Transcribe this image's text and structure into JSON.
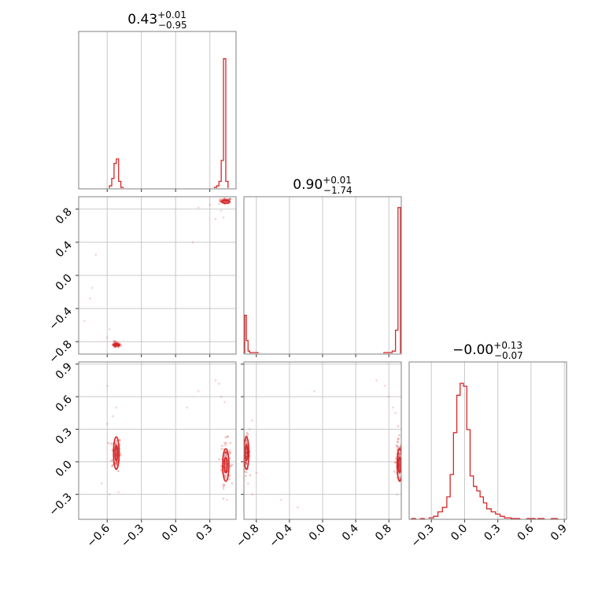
{
  "chart_data": [
    {
      "type": "histogram",
      "panel": "diag-0",
      "title": {
        "base": "0.43",
        "sup": "+0.01",
        "sub": "−0.95"
      },
      "xlim": [
        -0.85,
        0.53
      ],
      "bins": [
        {
          "x0": -0.58,
          "x1": -0.56,
          "v": 0.02
        },
        {
          "x0": -0.56,
          "x1": -0.54,
          "v": 0.07
        },
        {
          "x0": -0.54,
          "x1": -0.52,
          "v": 0.17
        },
        {
          "x0": -0.52,
          "x1": -0.5,
          "v": 0.2
        },
        {
          "x0": -0.5,
          "x1": -0.48,
          "v": 0.05
        },
        {
          "x0": -0.48,
          "x1": -0.46,
          "v": 0.01
        },
        {
          "x0": 0.34,
          "x1": 0.36,
          "v": 0.01
        },
        {
          "x0": 0.36,
          "x1": 0.38,
          "v": 0.02
        },
        {
          "x0": 0.38,
          "x1": 0.4,
          "v": 0.05
        },
        {
          "x0": 0.4,
          "x1": 0.42,
          "v": 0.19
        },
        {
          "x0": 0.42,
          "x1": 0.44,
          "v": 0.87
        },
        {
          "x0": 0.44,
          "x1": 0.46,
          "v": 0.05
        }
      ],
      "xticks": [
        -0.6,
        -0.3,
        0.0,
        0.3
      ]
    },
    {
      "type": "histogram",
      "panel": "diag-1",
      "title": {
        "base": "0.90",
        "sup": "+0.01",
        "sub": "−1.74"
      },
      "xlim": [
        -0.95,
        0.95
      ],
      "bins": [
        {
          "x0": -0.94,
          "x1": -0.92,
          "v": 0.26
        },
        {
          "x0": -0.92,
          "x1": -0.9,
          "v": 0.09
        },
        {
          "x0": -0.9,
          "x1": -0.88,
          "v": 0.02
        },
        {
          "x0": -0.88,
          "x1": -0.84,
          "v": 0.01
        },
        {
          "x0": -0.84,
          "x1": -0.78,
          "v": 0.01
        },
        {
          "x0": 0.74,
          "x1": 0.84,
          "v": 0.01
        },
        {
          "x0": 0.84,
          "x1": 0.88,
          "v": 0.02
        },
        {
          "x0": 0.88,
          "x1": 0.91,
          "v": 0.16
        },
        {
          "x0": 0.91,
          "x1": 0.94,
          "v": 0.98
        }
      ],
      "xticks": [
        -0.8,
        -0.4,
        0.0,
        0.4,
        0.8
      ]
    },
    {
      "type": "histogram",
      "panel": "diag-2",
      "title": {
        "base": "−0.00",
        "sup": "+0.13",
        "sub": "−0.07"
      },
      "xlim": [
        -0.5,
        0.92
      ],
      "bins": [
        {
          "x0": -0.48,
          "x1": -0.44,
          "v": 0.005
        },
        {
          "x0": -0.4,
          "x1": -0.36,
          "v": 0.005
        },
        {
          "x0": -0.32,
          "x1": -0.28,
          "v": 0.01
        },
        {
          "x0": -0.28,
          "x1": -0.24,
          "v": 0.02
        },
        {
          "x0": -0.24,
          "x1": -0.2,
          "v": 0.05
        },
        {
          "x0": -0.2,
          "x1": -0.16,
          "v": 0.08
        },
        {
          "x0": -0.16,
          "x1": -0.13,
          "v": 0.15
        },
        {
          "x0": -0.13,
          "x1": -0.1,
          "v": 0.3
        },
        {
          "x0": -0.1,
          "x1": -0.07,
          "v": 0.58
        },
        {
          "x0": -0.07,
          "x1": -0.04,
          "v": 0.83
        },
        {
          "x0": -0.04,
          "x1": -0.01,
          "v": 0.91
        },
        {
          "x0": -0.01,
          "x1": 0.02,
          "v": 0.89
        },
        {
          "x0": 0.02,
          "x1": 0.05,
          "v": 0.6
        },
        {
          "x0": 0.05,
          "x1": 0.08,
          "v": 0.29
        },
        {
          "x0": 0.08,
          "x1": 0.11,
          "v": 0.22
        },
        {
          "x0": 0.11,
          "x1": 0.14,
          "v": 0.19
        },
        {
          "x0": 0.14,
          "x1": 0.17,
          "v": 0.15
        },
        {
          "x0": 0.17,
          "x1": 0.2,
          "v": 0.11
        },
        {
          "x0": 0.2,
          "x1": 0.24,
          "v": 0.07
        },
        {
          "x0": 0.24,
          "x1": 0.28,
          "v": 0.05
        },
        {
          "x0": 0.28,
          "x1": 0.32,
          "v": 0.035
        },
        {
          "x0": 0.32,
          "x1": 0.36,
          "v": 0.02
        },
        {
          "x0": 0.36,
          "x1": 0.42,
          "v": 0.01
        },
        {
          "x0": 0.42,
          "x1": 0.5,
          "v": 0.005
        },
        {
          "x0": 0.56,
          "x1": 0.64,
          "v": 0.005
        },
        {
          "x0": 0.66,
          "x1": 0.72,
          "v": 0.005
        },
        {
          "x0": 0.78,
          "x1": 0.84,
          "v": 0.005
        }
      ],
      "xticks": [
        -0.3,
        0.0,
        0.3,
        0.6,
        0.9
      ]
    },
    {
      "type": "scatter",
      "panel": "p10",
      "xlim": [
        -0.85,
        0.53
      ],
      "ylim": [
        -0.95,
        0.95
      ],
      "yticks": [
        -0.8,
        -0.4,
        0.0,
        0.4,
        0.8
      ],
      "clusters": [
        {
          "cx": 0.44,
          "cy": 0.9,
          "sx": 0.025,
          "sy": 0.015,
          "n": 60
        },
        {
          "cx": -0.52,
          "cy": -0.84,
          "sx": 0.02,
          "sy": 0.02,
          "n": 40
        }
      ],
      "outliers": [
        [
          0.4,
          0.78
        ],
        [
          0.35,
          0.68
        ],
        [
          0.42,
          0.7
        ],
        [
          0.2,
          0.82
        ],
        [
          0.15,
          0.4
        ],
        [
          -0.7,
          0.25
        ],
        [
          -0.73,
          -0.15
        ],
        [
          -0.75,
          -0.28
        ],
        [
          -0.58,
          -0.65
        ],
        [
          -0.6,
          -0.75
        ],
        [
          -0.8,
          -0.55
        ],
        [
          0.3,
          0.85
        ],
        [
          0.38,
          0.86
        ]
      ],
      "contours": [
        {
          "cx": 0.44,
          "cy": 0.89,
          "rx": 0.035,
          "ry": 0.02
        },
        {
          "cx": -0.52,
          "cy": -0.84,
          "rx": 0.03,
          "ry": 0.015
        },
        {
          "cx": -0.52,
          "cy": -0.84,
          "rx": 0.015,
          "ry": 0.008
        }
      ]
    },
    {
      "type": "scatter",
      "panel": "p20",
      "xlim": [
        -0.85,
        0.53
      ],
      "ylim": [
        -0.53,
        0.92
      ],
      "yticks": [
        -0.3,
        0.0,
        0.3,
        0.6,
        0.9
      ],
      "clusters": [
        {
          "cx": -0.52,
          "cy": 0.08,
          "sx": 0.02,
          "sy": 0.08,
          "n": 80
        },
        {
          "cx": 0.44,
          "cy": 0.0,
          "sx": 0.02,
          "sy": 0.1,
          "n": 90
        }
      ],
      "outliers": [
        [
          -0.6,
          0.35
        ],
        [
          -0.55,
          0.42
        ],
        [
          -0.52,
          0.5
        ],
        [
          -0.6,
          0.7
        ],
        [
          -0.65,
          -0.2
        ],
        [
          -0.58,
          -0.3
        ],
        [
          0.4,
          0.6
        ],
        [
          0.38,
          0.72
        ],
        [
          0.35,
          0.75
        ],
        [
          0.43,
          0.55
        ],
        [
          0.2,
          0.65
        ],
        [
          0.1,
          0.5
        ],
        [
          0.45,
          -0.35
        ],
        [
          0.42,
          -0.25
        ],
        [
          -0.5,
          -0.28
        ]
      ],
      "contours": [
        {
          "cx": -0.52,
          "cy": 0.08,
          "rx": 0.025,
          "ry": 0.15
        },
        {
          "cx": -0.52,
          "cy": 0.08,
          "rx": 0.012,
          "ry": 0.07
        },
        {
          "cx": 0.44,
          "cy": -0.03,
          "rx": 0.028,
          "ry": 0.15
        },
        {
          "cx": 0.44,
          "cy": -0.03,
          "rx": 0.014,
          "ry": 0.07
        }
      ]
    },
    {
      "type": "scatter",
      "panel": "p21",
      "xlim": [
        -0.95,
        0.95
      ],
      "ylim": [
        -0.53,
        0.92
      ],
      "clusters": [
        {
          "cx": -0.92,
          "cy": 0.08,
          "sx": 0.02,
          "sy": 0.08,
          "n": 80
        },
        {
          "cx": 0.92,
          "cy": 0.0,
          "sx": 0.02,
          "sy": 0.1,
          "n": 90
        }
      ],
      "outliers": [
        [
          -0.88,
          0.3
        ],
        [
          -0.85,
          0.38
        ],
        [
          -0.9,
          -0.2
        ],
        [
          -0.85,
          -0.3
        ],
        [
          -0.8,
          -0.1
        ],
        [
          -0.5,
          -0.35
        ],
        [
          -0.3,
          -0.42
        ],
        [
          0.75,
          0.7
        ],
        [
          0.8,
          0.6
        ],
        [
          0.85,
          0.5
        ],
        [
          0.88,
          0.45
        ],
        [
          0.65,
          0.75
        ],
        [
          -0.1,
          0.65
        ],
        [
          0.9,
          -0.3
        ]
      ],
      "contours": [
        {
          "cx": -0.92,
          "cy": 0.08,
          "rx": 0.03,
          "ry": 0.15
        },
        {
          "cx": -0.92,
          "cy": 0.08,
          "rx": 0.015,
          "ry": 0.07
        },
        {
          "cx": 0.93,
          "cy": -0.03,
          "rx": 0.03,
          "ry": 0.15
        },
        {
          "cx": 0.93,
          "cy": -0.03,
          "rx": 0.015,
          "ry": 0.07
        }
      ]
    }
  ],
  "colors": {
    "accent": "#d62728",
    "grid": "#c8c8c8",
    "axes": "#808080"
  }
}
